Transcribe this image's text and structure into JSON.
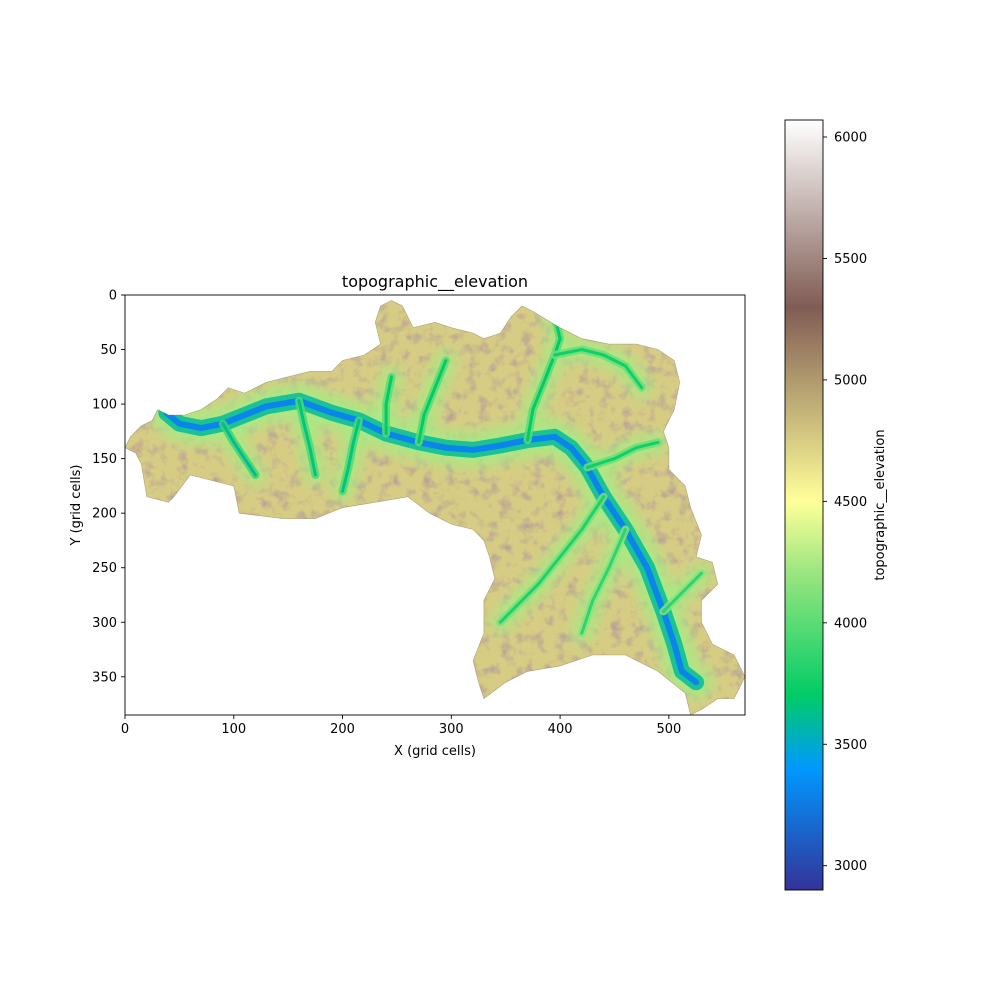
{
  "chart_data": {
    "type": "heatmap",
    "title": "topographic__elevation",
    "xlabel": "X (grid cells)",
    "ylabel": "Y (grid cells)",
    "xlim": [
      0,
      570
    ],
    "ylim": [
      385,
      0
    ],
    "x_ticks": [
      0,
      100,
      200,
      300,
      400,
      500
    ],
    "y_ticks": [
      0,
      50,
      100,
      150,
      200,
      250,
      300,
      350
    ],
    "colormap": "terrain",
    "colorbar": {
      "label": "topographic__elevation",
      "range": [
        2900,
        6070
      ],
      "ticks": [
        3000,
        3500,
        4000,
        4500,
        5000,
        5500,
        6000
      ],
      "stops": [
        {
          "value": 2900,
          "color": "#333399"
        },
        {
          "value": 3400,
          "color": "#0099ff"
        },
        {
          "value": 3700,
          "color": "#00cc66"
        },
        {
          "value": 4200,
          "color": "#99e57f"
        },
        {
          "value": 4500,
          "color": "#ffff99"
        },
        {
          "value": 5300,
          "color": "#805c54"
        },
        {
          "value": 6070,
          "color": "#ffffff"
        }
      ]
    },
    "watershed_outline": [
      [
        0,
        140
      ],
      [
        10,
        145
      ],
      [
        15,
        155
      ],
      [
        20,
        185
      ],
      [
        40,
        190
      ],
      [
        45,
        185
      ],
      [
        60,
        165
      ],
      [
        80,
        170
      ],
      [
        100,
        175
      ],
      [
        105,
        200
      ],
      [
        145,
        205
      ],
      [
        175,
        205
      ],
      [
        200,
        195
      ],
      [
        230,
        190
      ],
      [
        260,
        185
      ],
      [
        280,
        200
      ],
      [
        300,
        210
      ],
      [
        320,
        215
      ],
      [
        330,
        225
      ],
      [
        335,
        240
      ],
      [
        340,
        260
      ],
      [
        330,
        280
      ],
      [
        330,
        310
      ],
      [
        320,
        335
      ],
      [
        325,
        355
      ],
      [
        330,
        370
      ],
      [
        350,
        355
      ],
      [
        370,
        345
      ],
      [
        400,
        340
      ],
      [
        430,
        330
      ],
      [
        460,
        330
      ],
      [
        490,
        345
      ],
      [
        515,
        365
      ],
      [
        520,
        385
      ],
      [
        530,
        380
      ],
      [
        545,
        370
      ],
      [
        560,
        370
      ],
      [
        570,
        350
      ],
      [
        560,
        330
      ],
      [
        540,
        320
      ],
      [
        530,
        300
      ],
      [
        530,
        280
      ],
      [
        545,
        265
      ],
      [
        540,
        245
      ],
      [
        525,
        240
      ],
      [
        530,
        220
      ],
      [
        520,
        195
      ],
      [
        515,
        175
      ],
      [
        500,
        160
      ],
      [
        500,
        140
      ],
      [
        495,
        125
      ],
      [
        505,
        105
      ],
      [
        510,
        80
      ],
      [
        505,
        60
      ],
      [
        490,
        50
      ],
      [
        470,
        45
      ],
      [
        445,
        45
      ],
      [
        420,
        40
      ],
      [
        400,
        30
      ],
      [
        375,
        15
      ],
      [
        365,
        10
      ],
      [
        355,
        20
      ],
      [
        345,
        35
      ],
      [
        330,
        40
      ],
      [
        320,
        35
      ],
      [
        300,
        30
      ],
      [
        285,
        25
      ],
      [
        265,
        30
      ],
      [
        260,
        20
      ],
      [
        255,
        10
      ],
      [
        245,
        5
      ],
      [
        235,
        10
      ],
      [
        230,
        25
      ],
      [
        235,
        45
      ],
      [
        220,
        55
      ],
      [
        200,
        60
      ],
      [
        190,
        70
      ],
      [
        170,
        70
      ],
      [
        150,
        75
      ],
      [
        130,
        80
      ],
      [
        110,
        90
      ],
      [
        95,
        85
      ],
      [
        85,
        95
      ],
      [
        70,
        105
      ],
      [
        55,
        110
      ],
      [
        40,
        110
      ],
      [
        30,
        105
      ],
      [
        25,
        115
      ],
      [
        15,
        120
      ],
      [
        5,
        130
      ]
    ],
    "valley_network": [
      {
        "name": "main_trunk",
        "elevation": 3300,
        "points": [
          [
            38,
            108
          ],
          [
            50,
            118
          ],
          [
            70,
            122
          ],
          [
            90,
            118
          ],
          [
            110,
            110
          ],
          [
            130,
            102
          ],
          [
            160,
            97
          ],
          [
            190,
            108
          ],
          [
            215,
            115
          ],
          [
            240,
            127
          ],
          [
            270,
            135
          ],
          [
            295,
            140
          ],
          [
            320,
            142
          ],
          [
            345,
            138
          ],
          [
            370,
            133
          ],
          [
            395,
            130
          ],
          [
            410,
            140
          ],
          [
            425,
            158
          ],
          [
            440,
            185
          ],
          [
            460,
            215
          ],
          [
            480,
            250
          ],
          [
            495,
            290
          ],
          [
            505,
            320
          ],
          [
            512,
            345
          ],
          [
            525,
            355
          ]
        ]
      },
      {
        "name": "north_branch",
        "elevation": 3700,
        "points": [
          [
            370,
            133
          ],
          [
            375,
            105
          ],
          [
            385,
            80
          ],
          [
            395,
            55
          ],
          [
            400,
            40
          ],
          [
            395,
            20
          ],
          [
            390,
            10
          ]
        ]
      },
      {
        "name": "northeast_branch",
        "elevation": 3750,
        "points": [
          [
            395,
            55
          ],
          [
            420,
            50
          ],
          [
            440,
            55
          ],
          [
            460,
            65
          ],
          [
            475,
            85
          ]
        ]
      },
      {
        "name": "east_branch",
        "elevation": 3750,
        "points": [
          [
            425,
            158
          ],
          [
            450,
            150
          ],
          [
            470,
            140
          ],
          [
            490,
            135
          ]
        ]
      },
      {
        "name": "southwest_branch",
        "elevation": 3800,
        "points": [
          [
            440,
            185
          ],
          [
            420,
            215
          ],
          [
            400,
            240
          ],
          [
            380,
            265
          ],
          [
            360,
            285
          ],
          [
            345,
            300
          ]
        ]
      },
      {
        "name": "south_branch",
        "elevation": 3850,
        "points": [
          [
            460,
            215
          ],
          [
            445,
            250
          ],
          [
            430,
            280
          ],
          [
            420,
            310
          ]
        ]
      },
      {
        "name": "southeast_branch",
        "elevation": 3850,
        "points": [
          [
            495,
            290
          ],
          [
            515,
            270
          ],
          [
            530,
            255
          ]
        ]
      },
      {
        "name": "west_branch_1",
        "elevation": 3600,
        "points": [
          [
            90,
            118
          ],
          [
            100,
            135
          ],
          [
            110,
            150
          ],
          [
            120,
            165
          ]
        ]
      },
      {
        "name": "west_branch_2",
        "elevation": 3650,
        "points": [
          [
            160,
            97
          ],
          [
            165,
            120
          ],
          [
            170,
            140
          ],
          [
            175,
            165
          ]
        ]
      },
      {
        "name": "west_branch_3",
        "elevation": 3650,
        "points": [
          [
            215,
            115
          ],
          [
            210,
            135
          ],
          [
            205,
            160
          ],
          [
            200,
            180
          ]
        ]
      },
      {
        "name": "west_branch_4",
        "elevation": 3700,
        "points": [
          [
            270,
            135
          ],
          [
            275,
            110
          ],
          [
            285,
            85
          ],
          [
            295,
            60
          ]
        ]
      },
      {
        "name": "west_branch_5",
        "elevation": 3700,
        "points": [
          [
            240,
            127
          ],
          [
            240,
            100
          ],
          [
            245,
            75
          ]
        ]
      }
    ]
  }
}
